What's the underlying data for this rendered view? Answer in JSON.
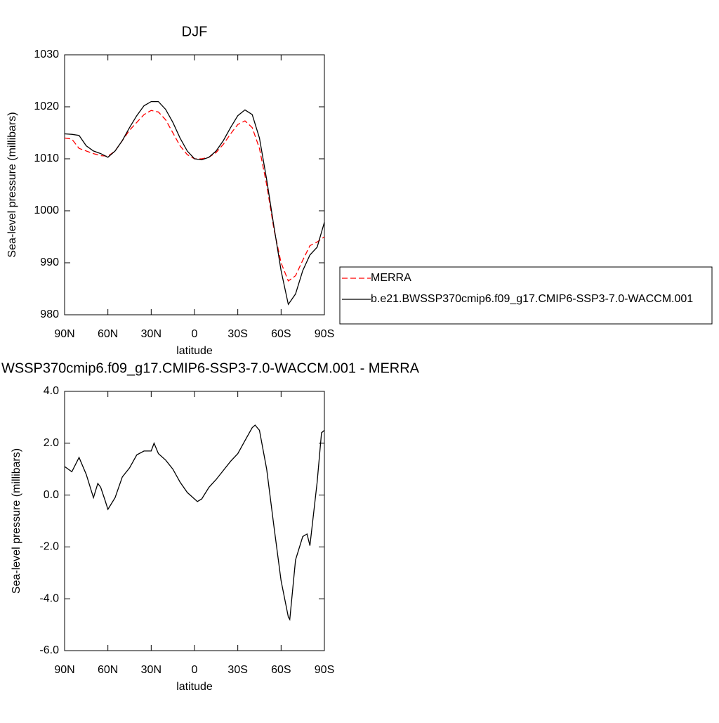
{
  "chart_data": [
    {
      "type": "line",
      "title": "DJF",
      "xlabel": "latitude",
      "ylabel": "Sea-level pressure (millibars)",
      "x": [
        90,
        85,
        80,
        75,
        70,
        65,
        60,
        55,
        50,
        45,
        40,
        35,
        30,
        25,
        20,
        15,
        10,
        5,
        0,
        -5,
        -10,
        -15,
        -20,
        -25,
        -30,
        -35,
        -40,
        -45,
        -50,
        -55,
        -60,
        -65,
        -70,
        -75,
        -80,
        -85,
        -90
      ],
      "series": [
        {
          "name": "MERRA",
          "color": "#ff0000",
          "dash": true,
          "values": [
            1014,
            1013.8,
            1012,
            1011.5,
            1011,
            1010.6,
            1010.5,
            1011.5,
            1013.5,
            1015.5,
            1017,
            1018.5,
            1019.3,
            1019,
            1017.5,
            1015,
            1012.5,
            1010.8,
            1010,
            1010,
            1010.3,
            1011.2,
            1012.8,
            1014.8,
            1016.6,
            1017.3,
            1016,
            1012,
            1005,
            996.5,
            990,
            986.5,
            987.5,
            990.5,
            993.3,
            994,
            995
          ]
        },
        {
          "name": "b.e21.BWSSP370cmip6.f09_g17.CMIP6-SSP3-7.0-WACCM.001",
          "color": "#000000",
          "dash": false,
          "values": [
            1014.8,
            1014.7,
            1014.5,
            1012.5,
            1011.5,
            1011.0,
            1010.3,
            1011.5,
            1013.5,
            1016,
            1018.3,
            1020.2,
            1021.0,
            1021,
            1019.5,
            1017,
            1014,
            1011.5,
            1010,
            1009.8,
            1010.3,
            1011.5,
            1013.5,
            1016,
            1018.3,
            1019.4,
            1018.5,
            1014,
            1006,
            997,
            988.5,
            982,
            984,
            988.5,
            991.5,
            993,
            997.8
          ]
        }
      ],
      "xlim": [
        90,
        -90
      ],
      "xticks": [
        {
          "value": 90,
          "label": "90N"
        },
        {
          "value": 60,
          "label": "60N"
        },
        {
          "value": 30,
          "label": "30N"
        },
        0,
        {
          "value": -30,
          "label": "30S"
        },
        {
          "value": -60,
          "label": "60S"
        },
        {
          "value": -90,
          "label": "90S"
        }
      ],
      "ylim": [
        980,
        1030
      ],
      "yticks": [
        980,
        990,
        1000,
        1010,
        1020,
        1030
      ],
      "legend": "right"
    },
    {
      "type": "line",
      "title": "WSSP370cmip6.f09_g17.CMIP6-SSP3-7.0-WACCM.001 - MERRA",
      "xlabel": "latitude",
      "ylabel": "Sea-level pressure (millibars)",
      "x": [
        90,
        85,
        80,
        75,
        70,
        67,
        65,
        62,
        60,
        55,
        50,
        45,
        40,
        35,
        30,
        28,
        25,
        20,
        15,
        10,
        5,
        0,
        -2,
        -5,
        -10,
        -15,
        -20,
        -25,
        -30,
        -35,
        -40,
        -42,
        -45,
        -50,
        -55,
        -60,
        -65,
        -66,
        -70,
        -75,
        -78,
        -80,
        -85,
        -88,
        -90
      ],
      "series": [
        {
          "color": "#000000",
          "dash": false,
          "values": [
            1.1,
            0.9,
            1.45,
            0.8,
            -0.1,
            0.45,
            0.3,
            -0.2,
            -0.55,
            -0.1,
            0.7,
            1.05,
            1.55,
            1.7,
            1.7,
            2.0,
            1.6,
            1.35,
            1.0,
            0.5,
            0.1,
            -0.15,
            -0.25,
            -0.15,
            0.3,
            0.6,
            0.95,
            1.3,
            1.6,
            2.1,
            2.6,
            2.7,
            2.5,
            1.0,
            -1.2,
            -3.3,
            -4.7,
            -4.8,
            -2.5,
            -1.6,
            -1.5,
            -1.95,
            0.5,
            2.4,
            2.5
          ]
        }
      ],
      "xlim": [
        90,
        -90
      ],
      "xticks": [
        {
          "value": 90,
          "label": "90N"
        },
        {
          "value": 60,
          "label": "60N"
        },
        {
          "value": 30,
          "label": "30N"
        },
        0,
        {
          "value": -30,
          "label": "30S"
        },
        {
          "value": -60,
          "label": "60S"
        },
        {
          "value": -90,
          "label": "90S"
        }
      ],
      "ylim": [
        -6,
        4
      ],
      "yticks": [
        {
          "value": -6,
          "label": "-6.0"
        },
        {
          "value": -4,
          "label": "-4.0"
        },
        {
          "value": -2,
          "label": "-2.0"
        },
        {
          "value": 0,
          "label": "0.0"
        },
        {
          "value": 2,
          "label": "2.0"
        },
        {
          "value": 4,
          "label": "4.0"
        }
      ]
    }
  ]
}
